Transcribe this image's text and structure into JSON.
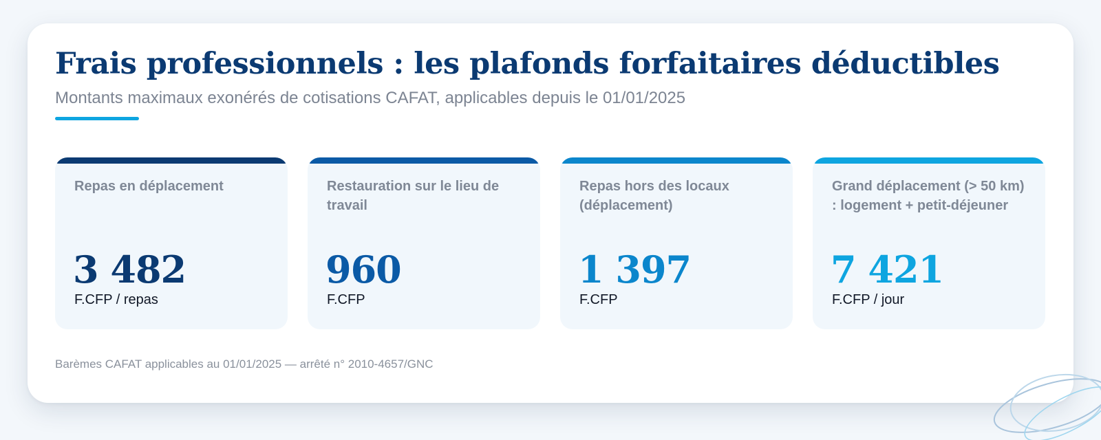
{
  "header": {
    "title": "Frais professionnels : les plafonds forfaitaires déductibles",
    "subtitle": "Montants maximaux exonérés de cotisations CAFAT, applicables depuis le 01/01/2025"
  },
  "colors": {
    "title": "#0b3a72",
    "accent": "#0ea5e0",
    "card_bg": "#f1f7fc"
  },
  "stats": [
    {
      "label": "Repas en déplacement",
      "value": "3 482",
      "unit": "F.CFP / repas",
      "color": "#0b3a72"
    },
    {
      "label": "Restauration sur le lieu de travail",
      "value": "960",
      "unit": "F.CFP",
      "color": "#0b5aa6"
    },
    {
      "label": "Repas hors des locaux (déplacement)",
      "value": "1 397",
      "unit": "F.CFP",
      "color": "#0b86cc"
    },
    {
      "label": "Grand déplacement (> 50 km) : logement + petit-déjeuner",
      "value": "7 421",
      "unit": "F.CFP / jour",
      "color": "#0ea5e0"
    }
  ],
  "footnote": "Barèmes CAFAT applicables au 01/01/2025 — arrêté n° 2010-4657/GNC"
}
